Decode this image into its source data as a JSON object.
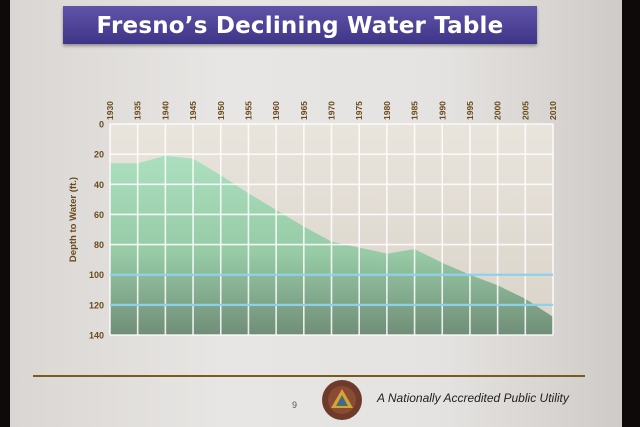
{
  "header": {
    "title": "Fresno’s Declining Water Table"
  },
  "footer": {
    "page_number": "9",
    "tagline": "A Nationally Accredited Public Utility",
    "logo_text": "ACCREDITED APWA"
  },
  "chart_data": {
    "type": "area",
    "title": "Fresno’s Declining Water Table",
    "xlabel": "",
    "ylabel": "Depth to Water (ft.)",
    "x_ticks": [
      "1930",
      "1935",
      "1940",
      "1945",
      "1950",
      "1955",
      "1960",
      "1965",
      "1970",
      "1975",
      "1980",
      "1985",
      "1990",
      "1995",
      "2000",
      "2005",
      "2010"
    ],
    "y_ticks": [
      "0",
      "20",
      "40",
      "60",
      "80",
      "100",
      "120",
      "140"
    ],
    "xlim": [
      1930,
      2010
    ],
    "ylim": [
      0,
      140
    ],
    "y_inverted": true,
    "grid": true,
    "series": [
      {
        "color": "#9fd8b4",
        "x": [
          1930,
          1935,
          1940,
          1945,
          1950,
          1955,
          1960,
          1965,
          1970,
          1975,
          1980,
          1985,
          1990,
          1995,
          2000,
          2005,
          2010
        ],
        "values": [
          26,
          26,
          21,
          23,
          34,
          46,
          57,
          68,
          78,
          82,
          86,
          83,
          92,
          100,
          107,
          116,
          128
        ]
      }
    ],
    "reference_lines": [
      {
        "y": 100,
        "color": "#8fd1ea"
      },
      {
        "y": 120,
        "color": "#8fd1ea"
      }
    ]
  }
}
